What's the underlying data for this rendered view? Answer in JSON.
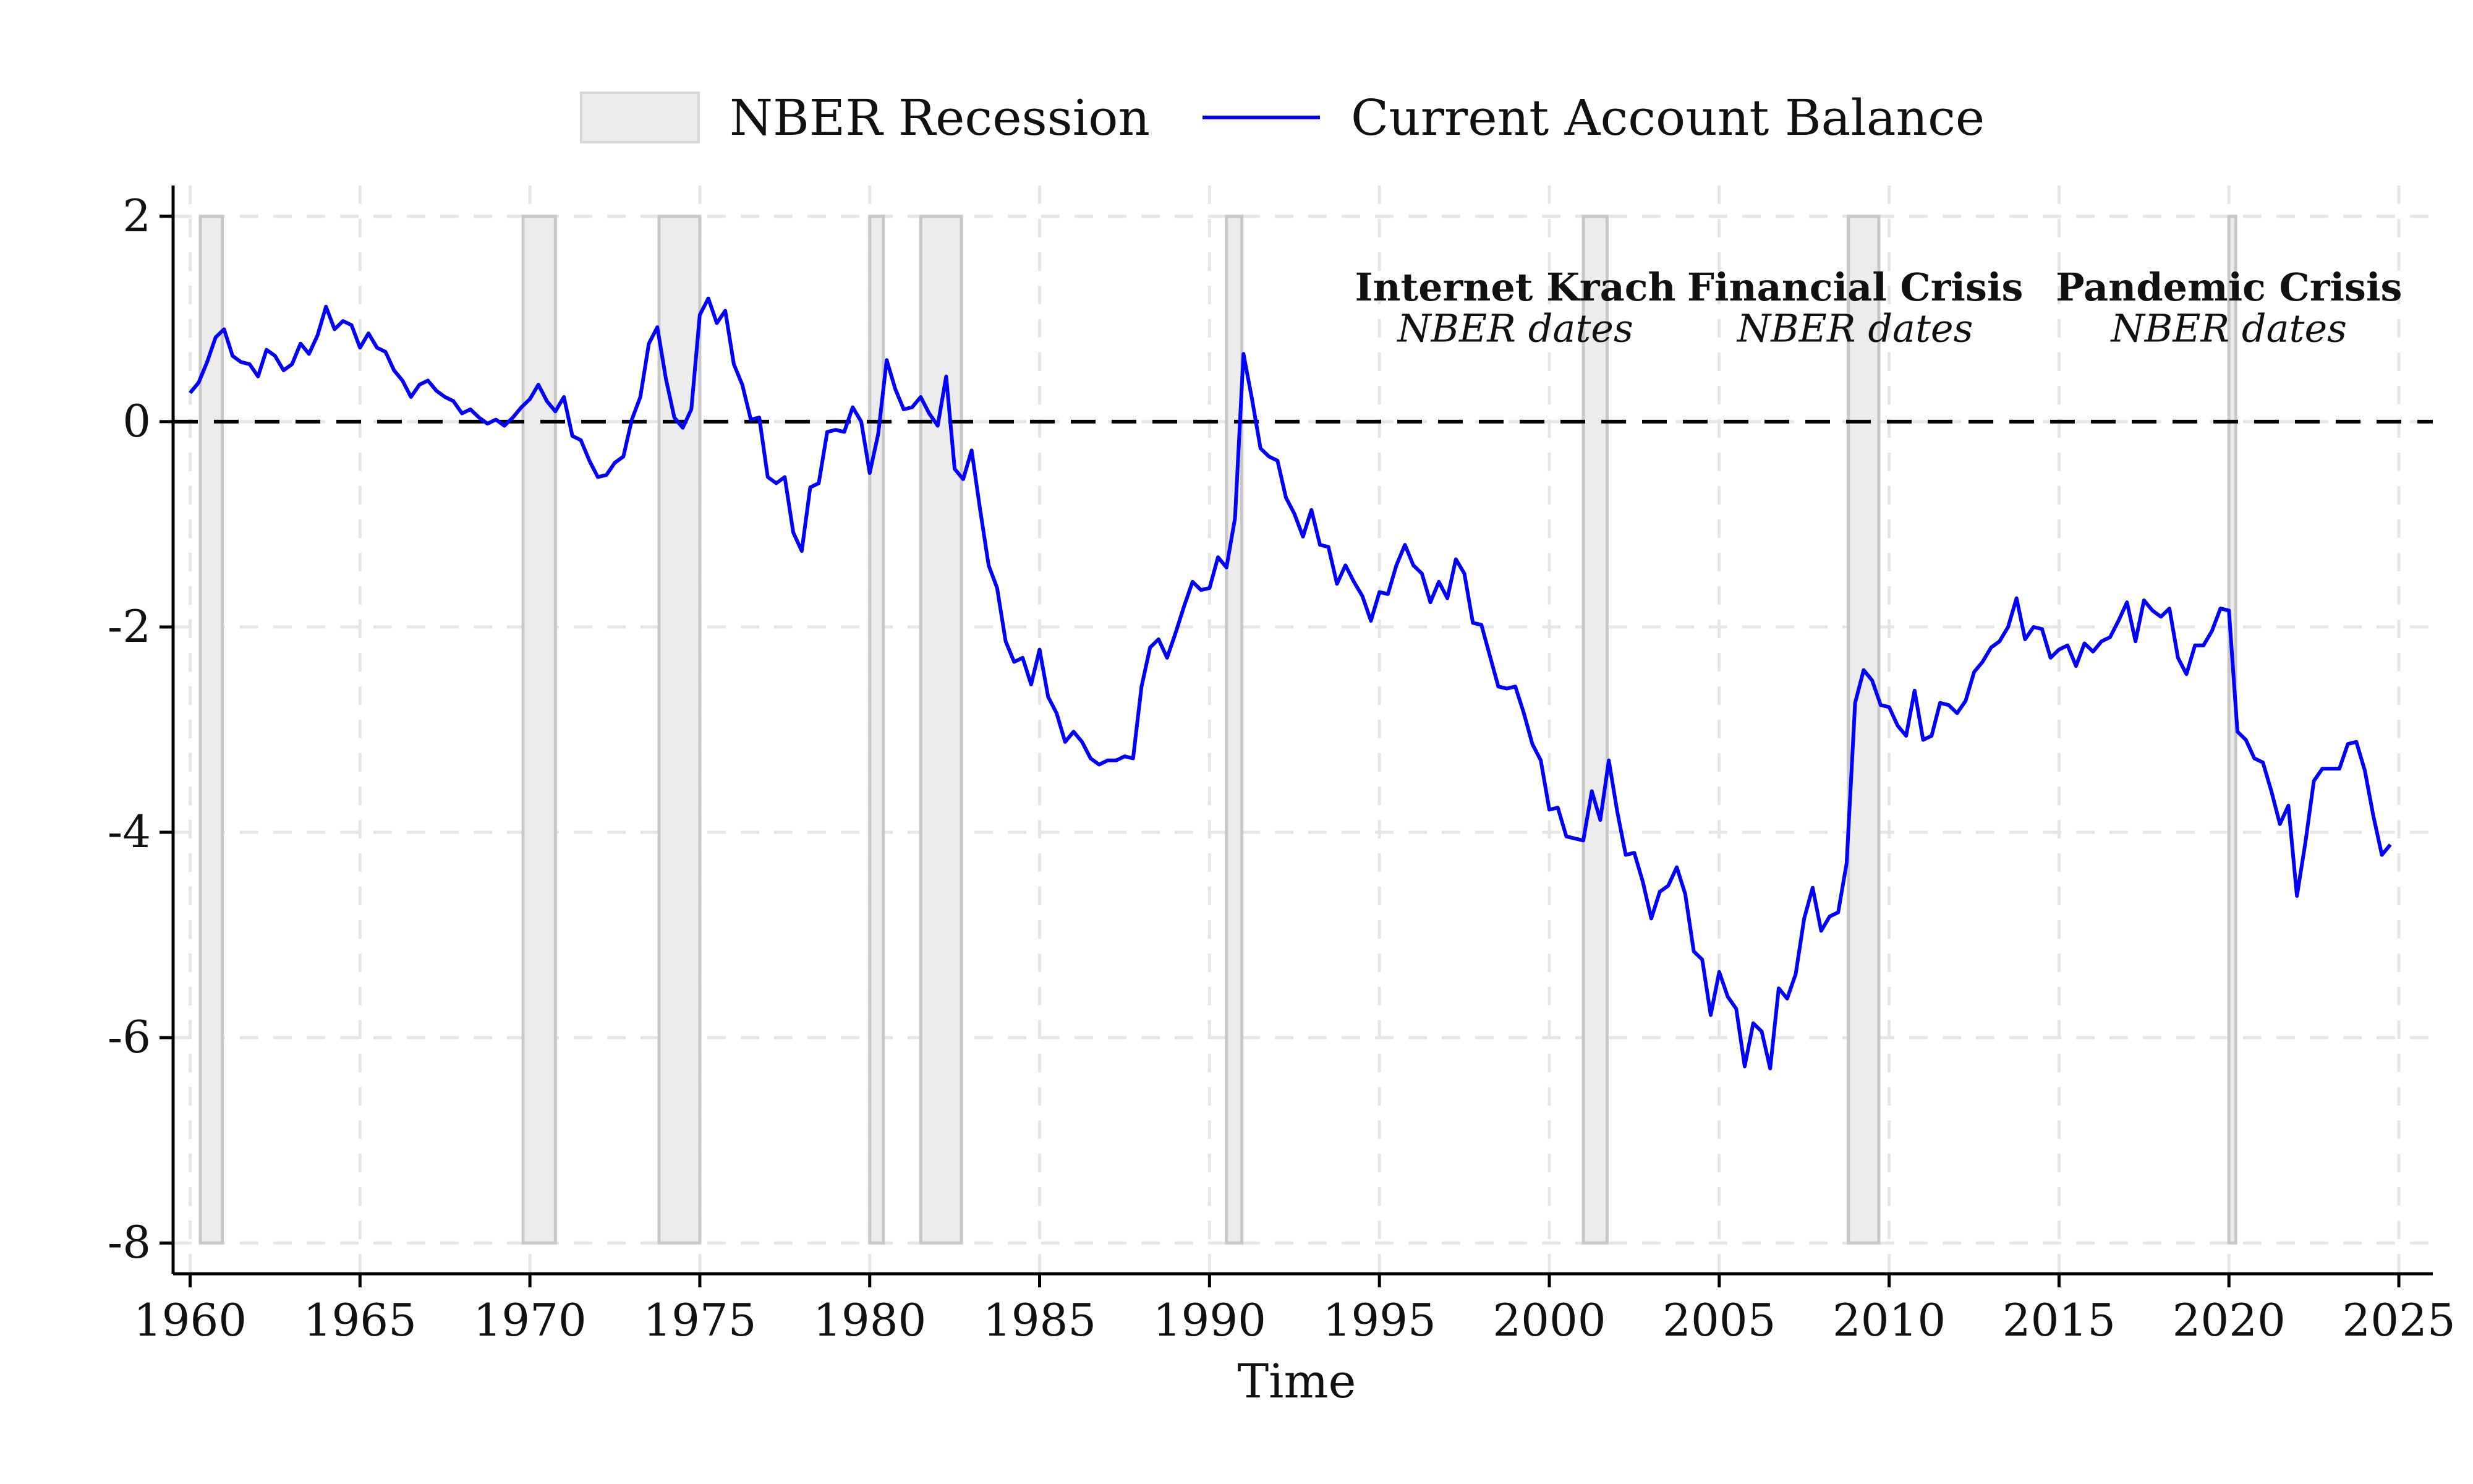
{
  "chart_data": {
    "type": "line",
    "title": "",
    "xlabel": "Time",
    "ylabel": "",
    "xlim": [
      1959.5,
      2026
    ],
    "ylim": [
      -8.3,
      2.3
    ],
    "x_ticks": [
      1960,
      1965,
      1970,
      1975,
      1980,
      1985,
      1990,
      1995,
      2000,
      2005,
      2010,
      2015,
      2020,
      2025
    ],
    "x_tick_labels": [
      "1960",
      "1965",
      "1970",
      "1975",
      "1980",
      "1985",
      "1990",
      "1995",
      "2000",
      "2005",
      "2010",
      "2015",
      "2020",
      "2025"
    ],
    "y_ticks": [
      2,
      0,
      -2,
      -4,
      -6,
      -8
    ],
    "y_tick_labels": [
      "2",
      "0",
      "-2",
      "-4",
      "-6",
      "-8"
    ],
    "grid": true,
    "legend_position": "top-center",
    "legend": [
      {
        "label": "NBER Recession",
        "kind": "shaded",
        "color": "#ececec"
      },
      {
        "label": "Current Account Balance",
        "kind": "line",
        "color": "#0000ff"
      }
    ],
    "reference_line": {
      "y": 0,
      "style": "dashed",
      "color": "#000000"
    },
    "recessions": [
      {
        "start": 1960.3,
        "end": 1960.95
      },
      {
        "start": 1969.8,
        "end": 1970.75
      },
      {
        "start": 1973.8,
        "end": 1975.0
      },
      {
        "start": 1980.0,
        "end": 1980.4
      },
      {
        "start": 1981.5,
        "end": 1982.7
      },
      {
        "start": 1990.5,
        "end": 1990.95
      },
      {
        "start": 2001.0,
        "end": 2001.7
      },
      {
        "start": 2008.8,
        "end": 2009.7
      },
      {
        "start": 2020.0,
        "end": 2020.2
      }
    ],
    "annotations": [
      {
        "title": "Internet Krach",
        "subtitle": "NBER dates",
        "x": 1999
      },
      {
        "title": "Financial Crisis",
        "subtitle": "NBER dates",
        "x": 2009
      },
      {
        "title": "Pandemic Crisis",
        "subtitle": "NBER dates",
        "x": 2020
      }
    ],
    "series": [
      {
        "name": "Current Account Balance",
        "color": "#0000ff",
        "x": [
          1960.0,
          1960.25,
          1960.5,
          1960.75,
          1961.0,
          1961.25,
          1961.5,
          1961.75,
          1962.0,
          1962.25,
          1962.5,
          1962.75,
          1963.0,
          1963.25,
          1963.5,
          1963.75,
          1964.0,
          1964.25,
          1964.5,
          1964.75,
          1965.0,
          1965.25,
          1965.5,
          1965.75,
          1966.0,
          1966.25,
          1966.5,
          1966.75,
          1967.0,
          1967.25,
          1967.5,
          1967.75,
          1968.0,
          1968.25,
          1968.5,
          1968.75,
          1969.0,
          1969.25,
          1969.5,
          1969.75,
          1970.0,
          1970.25,
          1970.5,
          1970.75,
          1971.0,
          1971.25,
          1971.5,
          1971.75,
          1972.0,
          1972.25,
          1972.5,
          1972.75,
          1973.0,
          1973.25,
          1973.5,
          1973.75,
          1974.0,
          1974.25,
          1974.5,
          1974.75,
          1975.0,
          1975.25,
          1975.5,
          1975.75,
          1976.0,
          1976.25,
          1976.5,
          1976.75,
          1977.0,
          1977.25,
          1977.5,
          1977.75,
          1978.0,
          1978.25,
          1978.5,
          1978.75,
          1979.0,
          1979.25,
          1979.5,
          1979.75,
          1980.0,
          1980.25,
          1980.5,
          1980.75,
          1981.0,
          1981.25,
          1981.5,
          1981.75,
          1982.0,
          1982.25,
          1982.5,
          1982.75,
          1983.0,
          1983.25,
          1983.5,
          1983.75,
          1984.0,
          1984.25,
          1984.5,
          1984.75,
          1985.0,
          1985.25,
          1985.5,
          1985.75,
          1986.0,
          1986.25,
          1986.5,
          1986.75,
          1987.0,
          1987.25,
          1987.5,
          1987.75,
          1988.0,
          1988.25,
          1988.5,
          1988.75,
          1989.0,
          1989.25,
          1989.5,
          1989.75,
          1990.0,
          1990.25,
          1990.5,
          1990.75,
          1991.0,
          1991.25,
          1991.5,
          1991.75,
          1992.0,
          1992.25,
          1992.5,
          1992.75,
          1993.0,
          1993.25,
          1993.5,
          1993.75,
          1994.0,
          1994.25,
          1994.5,
          1994.75,
          1995.0,
          1995.25,
          1995.5,
          1995.75,
          1996.0,
          1996.25,
          1996.5,
          1996.75,
          1997.0,
          1997.25,
          1997.5,
          1997.75,
          1998.0,
          1998.25,
          1998.5,
          1998.75,
          1999.0,
          1999.25,
          1999.5,
          1999.75,
          2000.0,
          2000.25,
          2000.5,
          2000.75,
          2001.0,
          2001.25,
          2001.5,
          2001.75,
          2002.0,
          2002.25,
          2002.5,
          2002.75,
          2003.0,
          2003.25,
          2003.5,
          2003.75,
          2004.0,
          2004.25,
          2004.5,
          2004.75,
          2005.0,
          2005.25,
          2005.5,
          2005.75,
          2006.0,
          2006.25,
          2006.5,
          2006.75,
          2007.0,
          2007.25,
          2007.5,
          2007.75,
          2008.0,
          2008.25,
          2008.5,
          2008.75,
          2009.0,
          2009.25,
          2009.5,
          2009.75,
          2010.0,
          2010.25,
          2010.5,
          2010.75,
          2011.0,
          2011.25,
          2011.5,
          2011.75,
          2012.0,
          2012.25,
          2012.5,
          2012.75,
          2013.0,
          2013.25,
          2013.5,
          2013.75,
          2014.0,
          2014.25,
          2014.5,
          2014.75,
          2015.0,
          2015.25,
          2015.5,
          2015.75,
          2016.0,
          2016.25,
          2016.5,
          2016.75,
          2017.0,
          2017.25,
          2017.5,
          2017.75,
          2018.0,
          2018.25,
          2018.5,
          2018.75,
          2019.0,
          2019.25,
          2019.5,
          2019.75,
          2020.0,
          2020.25,
          2020.5,
          2020.75,
          2021.0,
          2021.25,
          2021.5,
          2021.75,
          2022.0,
          2022.25,
          2022.5,
          2022.75,
          2023.0,
          2023.25,
          2023.5,
          2023.75,
          2024.0,
          2024.25,
          2024.5,
          2024.75
        ],
        "y": [
          0.28,
          0.38,
          0.58,
          0.82,
          0.9,
          0.64,
          0.58,
          0.56,
          0.44,
          0.7,
          0.64,
          0.5,
          0.56,
          0.76,
          0.66,
          0.84,
          1.12,
          0.9,
          0.98,
          0.94,
          0.72,
          0.86,
          0.72,
          0.68,
          0.5,
          0.4,
          0.24,
          0.36,
          0.4,
          0.3,
          0.24,
          0.2,
          0.08,
          0.12,
          0.04,
          -0.02,
          0.02,
          -0.04,
          0.04,
          0.14,
          0.22,
          0.36,
          0.2,
          0.1,
          0.24,
          -0.14,
          -0.18,
          -0.38,
          -0.54,
          -0.52,
          -0.4,
          -0.34,
          0.02,
          0.24,
          0.76,
          0.92,
          0.42,
          0.04,
          -0.06,
          0.12,
          1.04,
          1.2,
          0.96,
          1.08,
          0.56,
          0.36,
          0.02,
          0.04,
          -0.54,
          -0.6,
          -0.54,
          -1.08,
          -1.26,
          -0.64,
          -0.6,
          -0.1,
          -0.08,
          -0.1,
          0.14,
          0.0,
          -0.5,
          -0.12,
          0.6,
          0.32,
          0.12,
          0.14,
          0.24,
          0.08,
          -0.04,
          0.44,
          -0.46,
          -0.56,
          -0.28,
          -0.86,
          -1.4,
          -1.62,
          -2.14,
          -2.34,
          -2.3,
          -2.56,
          -2.22,
          -2.68,
          -2.84,
          -3.12,
          -3.02,
          -3.12,
          -3.28,
          -3.34,
          -3.3,
          -3.3,
          -3.26,
          -3.28,
          -2.58,
          -2.2,
          -2.12,
          -2.3,
          -2.06,
          -1.8,
          -1.56,
          -1.64,
          -1.62,
          -1.32,
          -1.42,
          -0.94,
          0.66,
          0.22,
          -0.26,
          -0.34,
          -0.38,
          -0.74,
          -0.9,
          -1.12,
          -0.86,
          -1.2,
          -1.22,
          -1.58,
          -1.4,
          -1.56,
          -1.7,
          -1.94,
          -1.66,
          -1.68,
          -1.4,
          -1.2,
          -1.4,
          -1.48,
          -1.76,
          -1.56,
          -1.72,
          -1.34,
          -1.48,
          -1.96,
          -1.98,
          -2.28,
          -2.58,
          -2.6,
          -2.58,
          -2.84,
          -3.14,
          -3.3,
          -3.78,
          -3.76,
          -4.04,
          -4.06,
          -4.08,
          -3.6,
          -3.88,
          -3.3,
          -3.8,
          -4.22,
          -4.2,
          -4.48,
          -4.84,
          -4.58,
          -4.52,
          -4.34,
          -4.6,
          -5.16,
          -5.24,
          -5.78,
          -5.36,
          -5.6,
          -5.72,
          -6.28,
          -5.86,
          -5.94,
          -6.3,
          -5.52,
          -5.62,
          -5.38,
          -4.84,
          -4.54,
          -4.96,
          -4.82,
          -4.78,
          -4.3,
          -2.74,
          -2.42,
          -2.52,
          -2.76,
          -2.78,
          -2.96,
          -3.06,
          -2.62,
          -3.1,
          -3.06,
          -2.74,
          -2.76,
          -2.84,
          -2.72,
          -2.44,
          -2.34,
          -2.2,
          -2.14,
          -2.0,
          -1.72,
          -2.12,
          -2.0,
          -2.02,
          -2.3,
          -2.22,
          -2.18,
          -2.38,
          -2.16,
          -2.24,
          -2.14,
          -2.1,
          -1.94,
          -1.76,
          -2.14,
          -1.74,
          -1.84,
          -1.9,
          -1.82,
          -2.3,
          -2.46,
          -2.18,
          -2.18,
          -2.04,
          -1.82,
          -1.84,
          -3.02,
          -3.1,
          -3.28,
          -3.32,
          -3.6,
          -3.92,
          -3.74,
          -4.62,
          -4.1,
          -3.5,
          -3.38,
          -3.38,
          -3.38,
          -3.14,
          -3.12,
          -3.4,
          -3.84,
          -4.22,
          -4.12
        ]
      }
    ]
  }
}
